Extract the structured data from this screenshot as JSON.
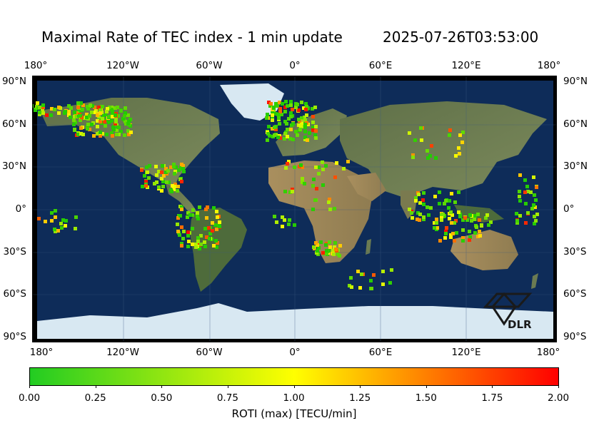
{
  "title": {
    "left": "Maximal Rate of TEC index - 1 min update",
    "right": "2025-07-26T03:53:00"
  },
  "map": {
    "lon_ticks": [
      "180°",
      "120°W",
      "60°W",
      "0°",
      "60°E",
      "120°E",
      "180°"
    ],
    "lat_ticks": [
      "90°N",
      "60°N",
      "30°N",
      "0°",
      "30°S",
      "60°S",
      "90°S"
    ],
    "logo_text": "DLR",
    "logo_icon": "dlr-logo-icon"
  },
  "colorbar": {
    "label": "ROTI (max) [TECU/min]",
    "ticks": [
      "0.00",
      "0.25",
      "0.50",
      "0.75",
      "1.00",
      "1.25",
      "1.50",
      "1.75",
      "2.00"
    ],
    "range": [
      0,
      2
    ],
    "colors": [
      "#22cc22",
      "#ffff00",
      "#ff0000"
    ]
  },
  "colors": {
    "ocean": "#0d2a55",
    "land": "#6b7b52",
    "ice": "#dbe9f2"
  }
}
